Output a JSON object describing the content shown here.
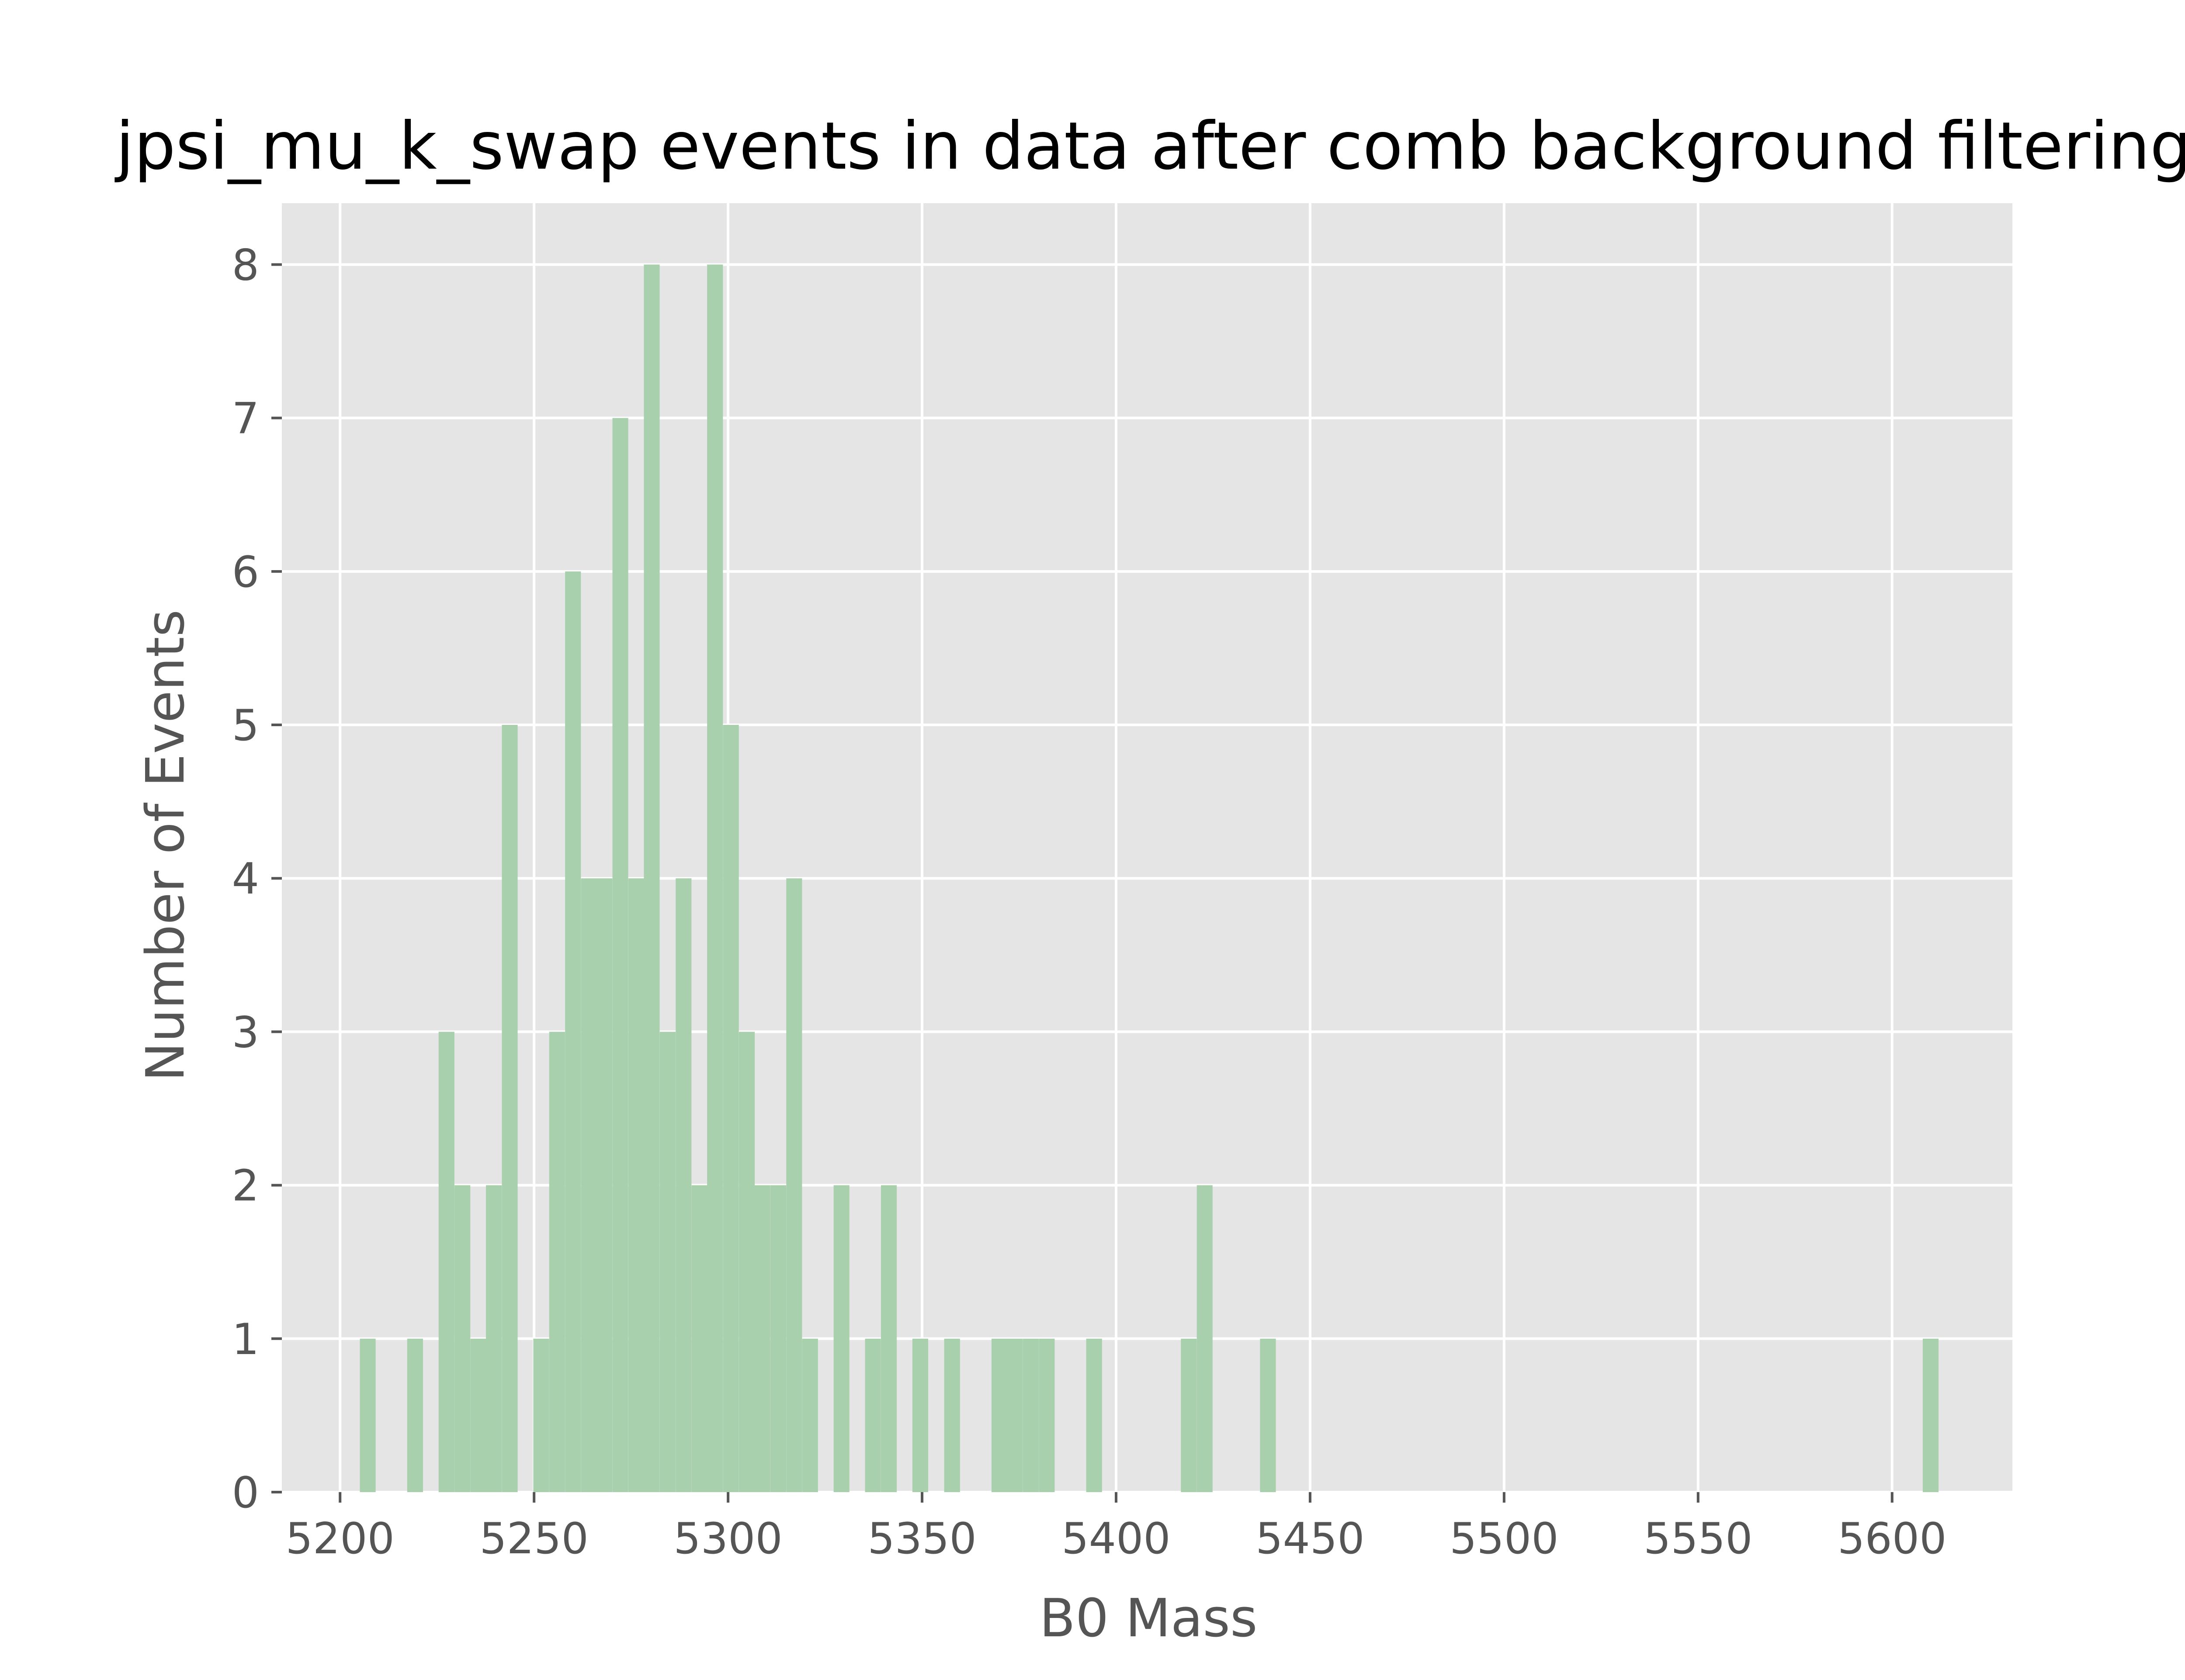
{
  "chart_data": {
    "type": "bar",
    "title": "jpsi_mu_k_swap events in data after comb background filtering",
    "xlabel": "B0 Mass",
    "ylabel": "Number of Events",
    "xlim": [
      5185,
      5631
    ],
    "ylim": [
      0,
      8.4
    ],
    "xticks": [
      "5200",
      "5250",
      "5300",
      "5350",
      "5400",
      "5450",
      "5500",
      "5550",
      "5600"
    ],
    "yticks": [
      "0",
      "1",
      "2",
      "3",
      "4",
      "5",
      "6",
      "7",
      "8"
    ],
    "grid": true,
    "legend": "none",
    "colors": {
      "bar": "#a9d0ad",
      "plot_background": "#e5e5e5",
      "grid": "#ffffff",
      "tick": "#555555",
      "title": "#000000"
    },
    "bin_width": 4.07,
    "bins": [
      {
        "x_left": 5205.1,
        "count": 1
      },
      {
        "x_left": 5217.3,
        "count": 1
      },
      {
        "x_left": 5225.4,
        "count": 3
      },
      {
        "x_left": 5229.5,
        "count": 2
      },
      {
        "x_left": 5233.6,
        "count": 1
      },
      {
        "x_left": 5237.6,
        "count": 2
      },
      {
        "x_left": 5241.7,
        "count": 5
      },
      {
        "x_left": 5249.8,
        "count": 1
      },
      {
        "x_left": 5253.9,
        "count": 3
      },
      {
        "x_left": 5258.0,
        "count": 6
      },
      {
        "x_left": 5262.1,
        "count": 4
      },
      {
        "x_left": 5266.1,
        "count": 4
      },
      {
        "x_left": 5270.2,
        "count": 7
      },
      {
        "x_left": 5274.3,
        "count": 4
      },
      {
        "x_left": 5278.3,
        "count": 8
      },
      {
        "x_left": 5282.4,
        "count": 3
      },
      {
        "x_left": 5286.5,
        "count": 4
      },
      {
        "x_left": 5290.6,
        "count": 2
      },
      {
        "x_left": 5294.6,
        "count": 8
      },
      {
        "x_left": 5298.7,
        "count": 5
      },
      {
        "x_left": 5302.8,
        "count": 3
      },
      {
        "x_left": 5306.8,
        "count": 2
      },
      {
        "x_left": 5310.9,
        "count": 2
      },
      {
        "x_left": 5315.0,
        "count": 4
      },
      {
        "x_left": 5319.1,
        "count": 1
      },
      {
        "x_left": 5327.2,
        "count": 2
      },
      {
        "x_left": 5335.3,
        "count": 1
      },
      {
        "x_left": 5339.4,
        "count": 2
      },
      {
        "x_left": 5347.5,
        "count": 1
      },
      {
        "x_left": 5355.7,
        "count": 1
      },
      {
        "x_left": 5367.9,
        "count": 1
      },
      {
        "x_left": 5371.9,
        "count": 1
      },
      {
        "x_left": 5376.0,
        "count": 1
      },
      {
        "x_left": 5380.1,
        "count": 1
      },
      {
        "x_left": 5392.3,
        "count": 1
      },
      {
        "x_left": 5416.7,
        "count": 1
      },
      {
        "x_left": 5420.8,
        "count": 2
      },
      {
        "x_left": 5437.1,
        "count": 1
      },
      {
        "x_left": 5607.9,
        "count": 1
      }
    ]
  }
}
